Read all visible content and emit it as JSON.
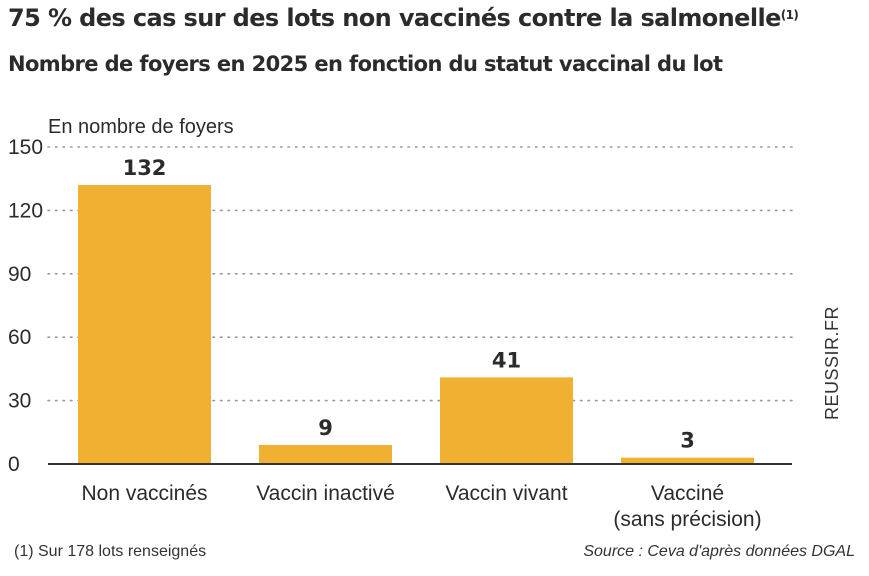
{
  "chart_data": {
    "type": "bar",
    "title": "75 % des cas sur des lots non vaccinés contre la salmonelle",
    "title_note": "(1)",
    "subtitle": "Nombre de foyers en 2025 en fonction du statut vaccinal du lot",
    "ylabel": "En nombre de foyers",
    "categories": [
      [
        "Non vaccinés"
      ],
      [
        "Vaccin inactivé"
      ],
      [
        "Vaccin vivant"
      ],
      [
        "Vacciné",
        "(sans précision)"
      ]
    ],
    "values": [
      132,
      9,
      41,
      3
    ],
    "data_labels": [
      "132",
      "9",
      "41",
      "3"
    ],
    "ylim": [
      0,
      150
    ],
    "yticks": [
      0,
      30,
      60,
      90,
      120,
      150
    ],
    "grid": true,
    "bar_color": "#f0b132",
    "grid_color": "#999999",
    "label_color": "#2b2b2b"
  },
  "footnote": "(1) Sur 178 lots renseignés",
  "source": "Source : Ceva d'après données DGAL",
  "watermark": "REUSSIR.FR"
}
